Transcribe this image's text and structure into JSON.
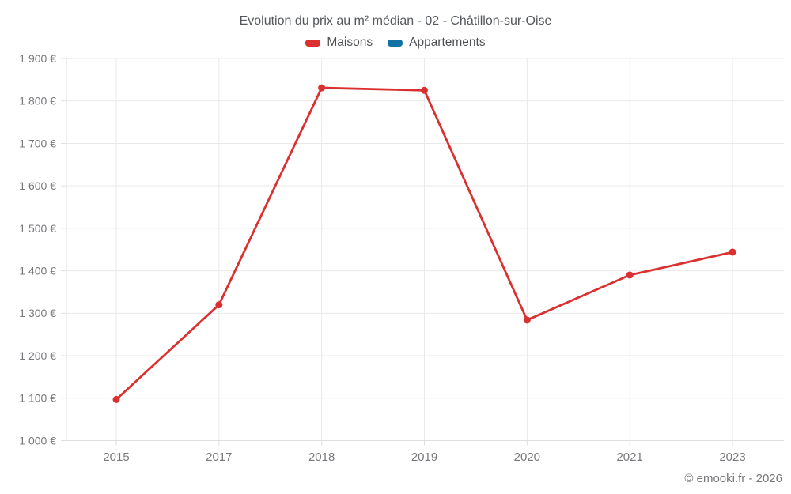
{
  "chart_data": {
    "type": "line",
    "title": "Evolution du prix au m² médian - 02 - Châtillon-sur-Oise",
    "categories": [
      "2015",
      "2017",
      "2018",
      "2019",
      "2020",
      "2021",
      "2023"
    ],
    "series": [
      {
        "name": "Maisons",
        "color": "#db3030",
        "values": [
          1097,
          1320,
          1831,
          1825,
          1284,
          1390,
          1444
        ]
      },
      {
        "name": "Appartements",
        "color": "#1272a4",
        "values": []
      }
    ],
    "xlabel": "",
    "ylabel": "",
    "ylim": [
      1000,
      1900
    ],
    "ytick_step": 100,
    "ytick_labels": [
      "1 000 €",
      "1 100 €",
      "1 200 €",
      "1 300 €",
      "1 400 €",
      "1 500 €",
      "1 600 €",
      "1 700 €",
      "1 800 €",
      "1 900 €"
    ],
    "grid": true,
    "legend_position": "top",
    "line_width": 2.8,
    "point_radius": 4.5
  },
  "footer": {
    "copyright": "© emooki.fr - 2026"
  }
}
